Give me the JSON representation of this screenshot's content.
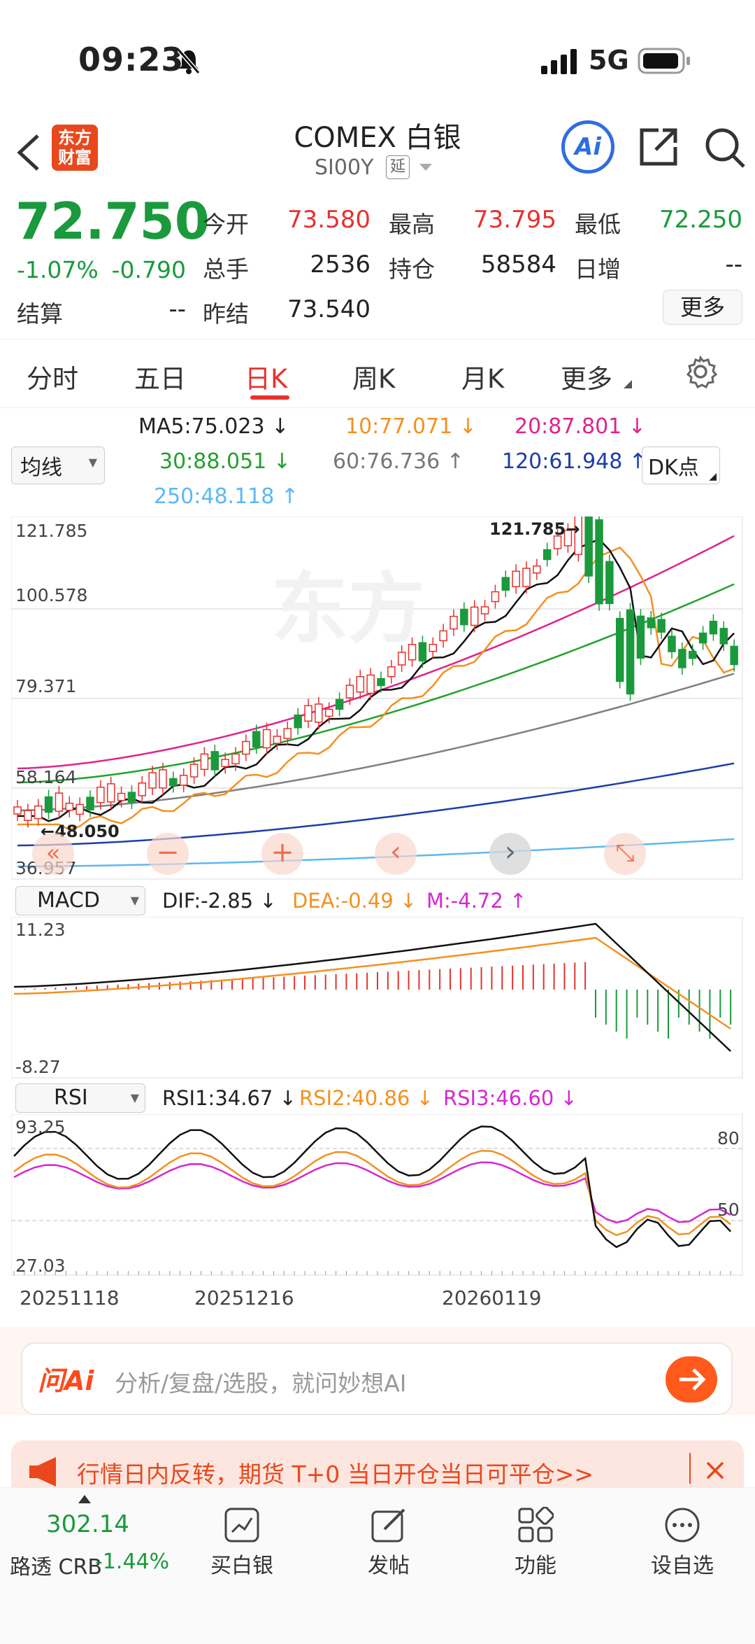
{
  "status": {
    "time": "09:23",
    "network": "5G"
  },
  "nav": {
    "logo_line1": "东方",
    "logo_line2": "财富",
    "title": "COMEX 白银",
    "code": "SI00Y",
    "delay_badge": "延",
    "ai_label": "Ai"
  },
  "quote": {
    "price": "72.750",
    "change_pct": "-1.07%",
    "change": "-0.790",
    "open_label": "今开",
    "open": "73.580",
    "high_label": "最高",
    "high": "73.795",
    "low_label": "最低",
    "low": "72.250",
    "volume_label": "总手",
    "volume": "2536",
    "oi_label": "持仓",
    "oi": "58584",
    "daily_inc_label": "日增",
    "daily_inc": "--",
    "settle_label": "结算",
    "settle": "--",
    "prev_settle_label": "昨结",
    "prev_settle": "73.540",
    "more_button": "更多"
  },
  "tabs": [
    "分时",
    "五日",
    "日K",
    "周K",
    "月K",
    "更多"
  ],
  "active_tab": 2,
  "ma": {
    "selector": "均线",
    "ma5": "MA5:75.023 ↓",
    "ma10": "10:77.071 ↓",
    "ma20": "20:87.801 ↓",
    "ma30": "30:88.051 ↓",
    "ma60": "60:76.736 ↑",
    "ma120": "120:61.948 ↑",
    "ma250": "250:48.118 ↑",
    "dk_button": "DK点",
    "colors": {
      "ma5": "#111111",
      "ma10": "#f29120",
      "ma20": "#e0238b",
      "ma30": "#22a12b",
      "ma60": "#808080",
      "ma120": "#1e3da8",
      "ma250": "#5cb8f2"
    }
  },
  "kline": {
    "y_labels": [
      "121.785",
      "100.578",
      "79.371",
      "58.164",
      "36.957"
    ],
    "max_marker": "121.785→",
    "min_marker": "←48.050",
    "controls": [
      "«",
      "−",
      "+",
      "‹",
      "›",
      "⤡"
    ]
  },
  "macd": {
    "selector": "MACD",
    "dif": "DIF:-2.85 ↓",
    "dea": "DEA:-0.49 ↓",
    "m": "M:-4.72 ↑",
    "y_top": "11.23",
    "y_bottom": "-8.27"
  },
  "rsi": {
    "selector": "RSI",
    "rsi1": "RSI1:34.67 ↓",
    "rsi2": "RSI2:40.86 ↓",
    "rsi3": "RSI3:46.60 ↓",
    "y_top": "93.25",
    "y_bottom": "27.03",
    "level_80": "80",
    "level_50": "50"
  },
  "x_dates": [
    "20251118",
    "20251216",
    "20260119"
  ],
  "ask": {
    "logo": "问Ai",
    "placeholder": "分析/复盘/选股，就问妙想AI"
  },
  "banner": {
    "text": "行情日内反转，期货 T+0 当日开仓当日可平仓>>"
  },
  "bottom": {
    "index_value": "302.14",
    "index_name": "路透 CRB",
    "index_change": "-1.44%",
    "items": [
      "买白银",
      "发帖",
      "功能",
      "设自选"
    ]
  }
}
